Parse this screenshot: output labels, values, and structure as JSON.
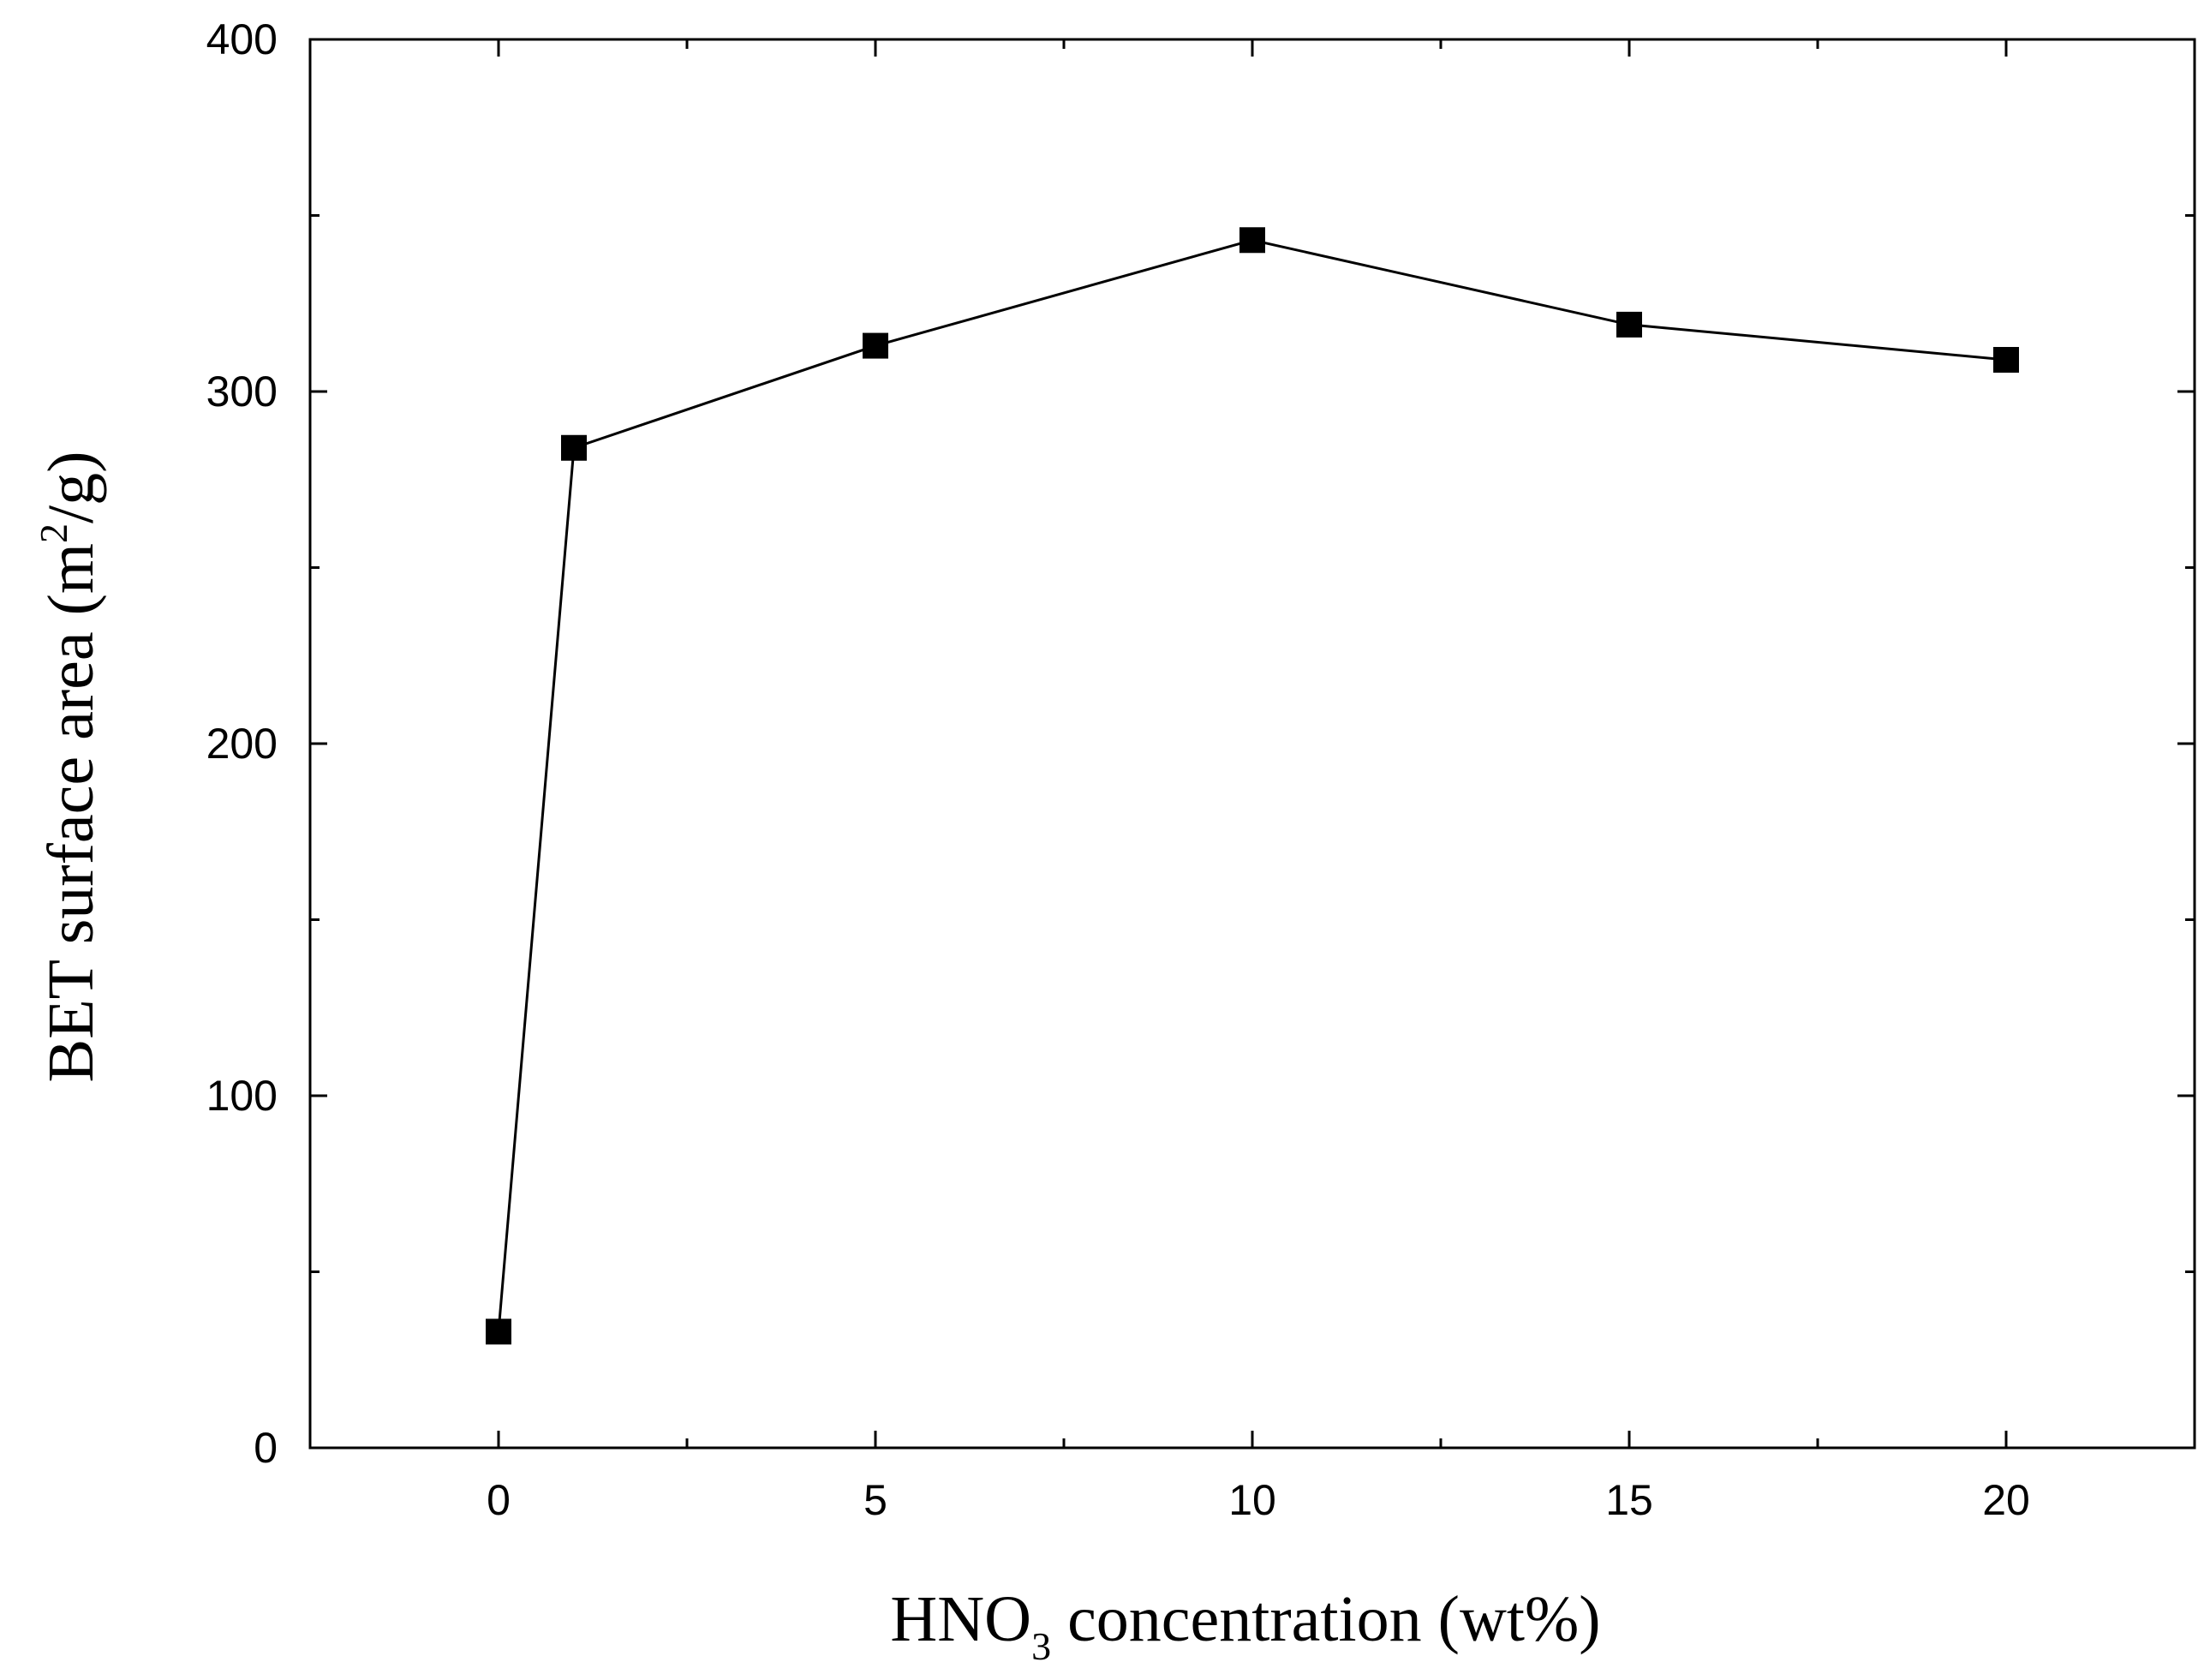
{
  "chart_data": {
    "type": "line",
    "title": "",
    "xlabel": {
      "prefix": "HNO",
      "sub": "3",
      "suffix": " concentration (wt%)"
    },
    "ylabel": {
      "prefix": "BET surface area (m",
      "sup": "2",
      "suffix": "/g)"
    },
    "xlim": [
      -2.5,
      22.5
    ],
    "ylim": [
      0,
      400
    ],
    "x_ticks": [
      0,
      5,
      10,
      15,
      20
    ],
    "x_tick_labels": [
      "0",
      "5",
      "10",
      "15",
      "20"
    ],
    "x_minor_ticks": [
      2.5,
      7.5,
      12.5,
      17.5
    ],
    "y_ticks": [
      0,
      100,
      200,
      300,
      400
    ],
    "y_tick_labels": [
      "0",
      "100",
      "200",
      "300",
      "400"
    ],
    "y_minor_ticks": [
      50,
      150,
      250,
      350
    ],
    "grid": false,
    "series": [
      {
        "marker": "square",
        "color": "#000000",
        "x": [
          0,
          1,
          5,
          10,
          15,
          20
        ],
        "y": [
          33,
          284,
          313,
          343,
          319,
          309
        ]
      }
    ]
  }
}
